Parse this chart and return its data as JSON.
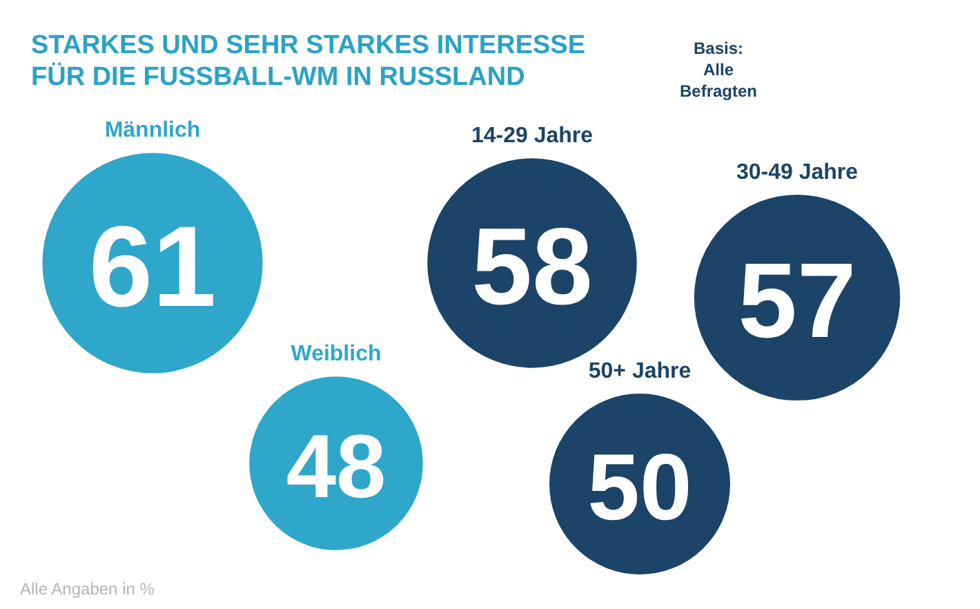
{
  "chart_data": {
    "type": "other",
    "title": "STARKES UND SEHR STARKES INTERESSE FÜR DIE FUSSBALL-WM IN RUSSLAND",
    "categories": [
      "Männlich",
      "Weiblich",
      "14-29 Jahre",
      "30-49 Jahre",
      "50+ Jahre"
    ],
    "values": [
      61,
      48,
      58,
      57,
      50
    ],
    "colors": [
      "#2ea7cb",
      "#2ea7cb",
      "#1c4468",
      "#1c4468",
      "#1c4468"
    ],
    "data_labels": true,
    "annotations": [
      "Basis: Alle Befragten",
      "Alle Angaben in %"
    ]
  }
}
